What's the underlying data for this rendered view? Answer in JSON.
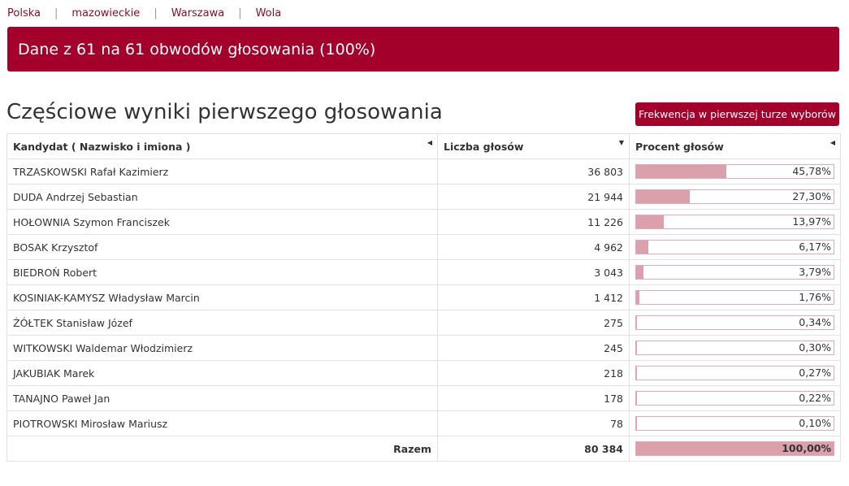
{
  "breadcrumb": {
    "items": [
      "Polska",
      "mazowieckie",
      "Warszawa",
      "Wola"
    ],
    "separator": "|"
  },
  "banner": {
    "text": "Dane z 61 na 61 obwodów głosowania (100%)"
  },
  "section": {
    "title": "Częściowe wyniki pierwszego głosowania",
    "turnout_button": "Frekwencja w pierwszej turze wyborów"
  },
  "table": {
    "headers": {
      "candidate": "Kandydat ( Nazwisko i imiona )",
      "votes": "Liczba głosów",
      "percent": "Procent głosów"
    },
    "rows": [
      {
        "name": "TRZASKOWSKI Rafał Kazimierz",
        "votes": "36 803",
        "percent": "45,78%",
        "fraction": 0.4578
      },
      {
        "name": "DUDA Andrzej Sebastian",
        "votes": "21 944",
        "percent": "27,30%",
        "fraction": 0.273
      },
      {
        "name": "HOŁOWNIA Szymon Franciszek",
        "votes": "11 226",
        "percent": "13,97%",
        "fraction": 0.1397
      },
      {
        "name": "BOSAK Krzysztof",
        "votes": "4 962",
        "percent": "6,17%",
        "fraction": 0.0617
      },
      {
        "name": "BIEDROŃ Robert",
        "votes": "3 043",
        "percent": "3,79%",
        "fraction": 0.0379
      },
      {
        "name": "KOSINIAK-KAMYSZ Władysław Marcin",
        "votes": "1 412",
        "percent": "1,76%",
        "fraction": 0.0176
      },
      {
        "name": "ŻÓŁTEK Stanisław Józef",
        "votes": "275",
        "percent": "0,34%",
        "fraction": 0.0034
      },
      {
        "name": "WITKOWSKI Waldemar Włodzimierz",
        "votes": "245",
        "percent": "0,30%",
        "fraction": 0.003
      },
      {
        "name": "JAKUBIAK Marek",
        "votes": "218",
        "percent": "0,27%",
        "fraction": 0.0027
      },
      {
        "name": "TANAJNO Paweł Jan",
        "votes": "178",
        "percent": "0,22%",
        "fraction": 0.0022
      },
      {
        "name": "PIOTROWSKI Mirosław Mariusz",
        "votes": "78",
        "percent": "0,10%",
        "fraction": 0.001
      }
    ],
    "total": {
      "label": "Razem",
      "votes": "80 384",
      "percent": "100,00%",
      "fraction": 1.0
    }
  },
  "colors": {
    "accent": "#a3002b",
    "bar_fill": "#daa0ac",
    "bar_border": "#e3aab6",
    "link": "#8a0f2b"
  }
}
